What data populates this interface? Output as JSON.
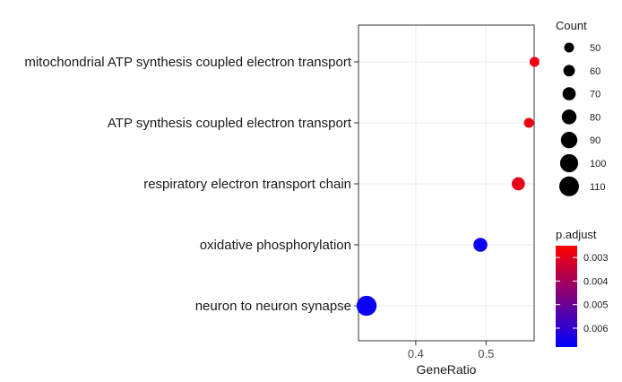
{
  "chart_data": {
    "type": "scatter",
    "title": "",
    "xlabel": "GeneRatio",
    "ylabel": "",
    "xlim": [
      0.33,
      0.58
    ],
    "xticks": [
      0.4,
      0.5
    ],
    "xtick_labels": [
      "0.4",
      "0.5"
    ],
    "grid": true,
    "categories": [
      "mitochondrial ATP synthesis coupled electron transport",
      "ATP synthesis coupled electron transport",
      "respiratory electron transport chain",
      "oxidative phosphorylation",
      "neuron to neuron synapse"
    ],
    "points": [
      {
        "category": "mitochondrial ATP synthesis coupled electron transport",
        "x": 0.569,
        "count": 50,
        "p_adjust": 0.0028
      },
      {
        "category": "ATP synthesis coupled electron transport",
        "x": 0.561,
        "count": 50,
        "p_adjust": 0.0028
      },
      {
        "category": "respiratory electron transport chain",
        "x": 0.546,
        "count": 70,
        "p_adjust": 0.0029
      },
      {
        "category": "oxidative phosphorylation",
        "x": 0.492,
        "count": 75,
        "p_adjust": 0.0066
      },
      {
        "category": "neuron to neuron synapse",
        "x": 0.33,
        "count": 112,
        "p_adjust": 0.0066
      }
    ],
    "size_legend": {
      "title": "Count",
      "values": [
        50,
        60,
        70,
        80,
        90,
        100,
        110
      ],
      "labels": [
        "50",
        "60",
        "70",
        "80",
        "90",
        "100",
        "110"
      ]
    },
    "color_legend": {
      "title": "p.adjust",
      "range": [
        0.0025,
        0.0068
      ],
      "ticks": [
        0.003,
        0.004,
        0.005,
        0.006
      ],
      "labels": [
        "0.003",
        "0.004",
        "0.005",
        "0.006"
      ],
      "low_color": "#FF0000",
      "high_color": "#0000FF"
    },
    "legend_position": "right"
  }
}
